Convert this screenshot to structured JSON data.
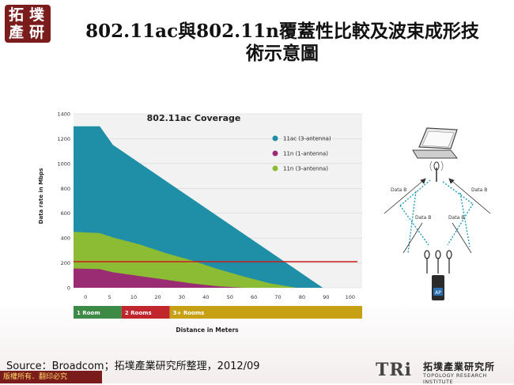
{
  "header": {
    "logo_chars": [
      "拓",
      "墣",
      "產",
      "研"
    ],
    "title_line1": "802.11ac與802.11n覆蓋性比較及波束成形技",
    "title_line2": "術示意圖"
  },
  "chart_data": {
    "type": "area",
    "title": "802.11ac Coverage",
    "xlabel": "Distance in Meters",
    "ylabel": "Data rate in Mbps",
    "xlim": [
      -5,
      105
    ],
    "ylim": [
      0,
      1400
    ],
    "x_ticks": [
      "0",
      "5",
      "10",
      "20",
      "30",
      "40",
      "50",
      "60",
      "70",
      "80",
      "90",
      "100"
    ],
    "y_ticks": [
      "0",
      "200",
      "400",
      "600",
      "800",
      "1000",
      "1200",
      "1400"
    ],
    "series": [
      {
        "name": "11ac (3-antenna)",
        "color": "#1f8fa8",
        "points": [
          [
            -5,
            1300
          ],
          [
            5,
            1300
          ],
          [
            10,
            1150
          ],
          [
            90,
            0
          ]
        ]
      },
      {
        "name": "11n (3-antenna)",
        "color": "#8cbc34",
        "points": [
          [
            -5,
            450
          ],
          [
            5,
            440
          ],
          [
            10,
            405
          ],
          [
            20,
            350
          ],
          [
            30,
            280
          ],
          [
            40,
            220
          ],
          [
            50,
            150
          ],
          [
            60,
            90
          ],
          [
            70,
            35
          ],
          [
            80,
            0
          ]
        ]
      },
      {
        "name": "11n (1-antenna)",
        "color": "#9a2c74",
        "points": [
          [
            -5,
            155
          ],
          [
            5,
            150
          ],
          [
            10,
            125
          ],
          [
            20,
            95
          ],
          [
            30,
            65
          ],
          [
            40,
            35
          ],
          [
            50,
            12
          ],
          [
            60,
            0
          ]
        ]
      }
    ],
    "reference_line": {
      "y": 210,
      "color": "#cc1f1f"
    },
    "rooms": [
      {
        "label": "1 Room",
        "x_from": -5,
        "x_to": 10,
        "color": "#3d8a46"
      },
      {
        "label": "2 Rooms",
        "x_from": 10,
        "x_to": 30,
        "color": "#c0262c"
      },
      {
        "label": "3+ Rooms",
        "x_from": 30,
        "x_to": 105,
        "color": "#c8a014"
      }
    ],
    "legend_position": "top-right",
    "grid": "horizontal"
  },
  "diagram": {
    "data_label": "Data B",
    "ap_label": "AP"
  },
  "footer": {
    "source": "Source：Broadcom；拓墣產業研究所整理，2012/09",
    "copyright": "版權所有．翻印必究",
    "brand_tri": "TRi",
    "brand_cn": "拓墣產業研究所",
    "brand_en": "TOPOLOGY RESEARCH INSTITUTE"
  }
}
